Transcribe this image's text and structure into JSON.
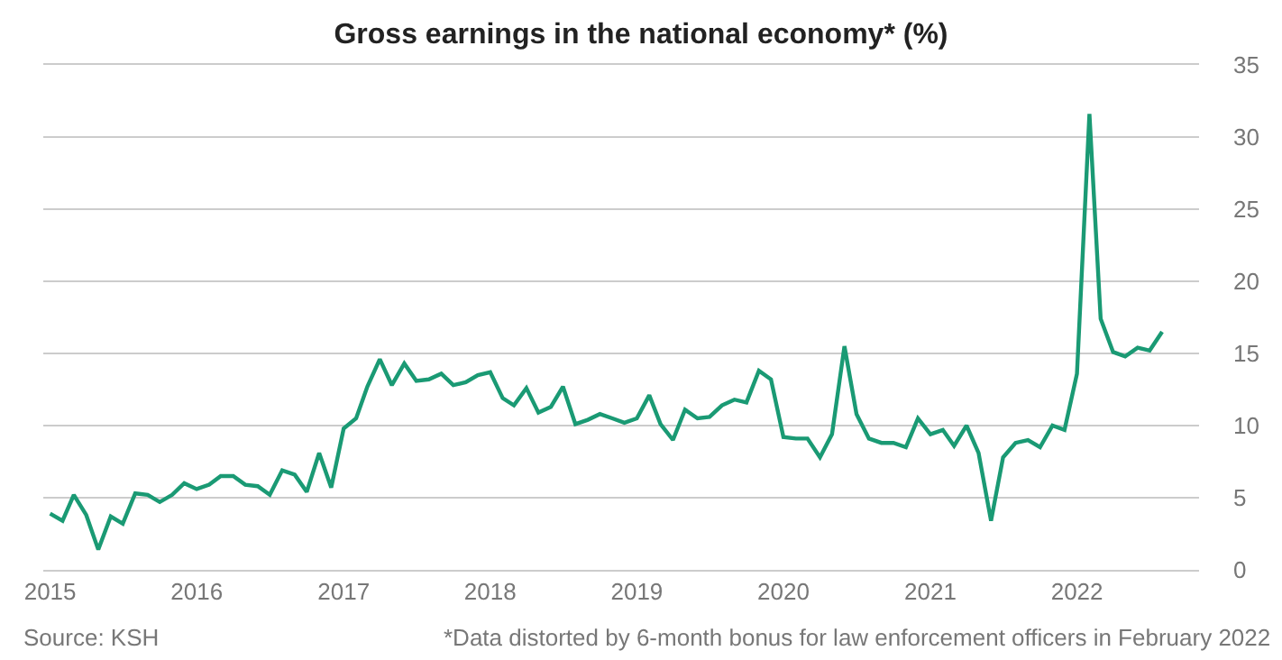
{
  "chart_data": {
    "type": "line",
    "title": "Gross earnings in the national economy* (%)",
    "x": [
      "2015-01",
      "2015-02",
      "2015-03",
      "2015-04",
      "2015-05",
      "2015-06",
      "2015-07",
      "2015-08",
      "2015-09",
      "2015-10",
      "2015-11",
      "2015-12",
      "2016-01",
      "2016-02",
      "2016-03",
      "2016-04",
      "2016-05",
      "2016-06",
      "2016-07",
      "2016-08",
      "2016-09",
      "2016-10",
      "2016-11",
      "2016-12",
      "2017-01",
      "2017-02",
      "2017-03",
      "2017-04",
      "2017-05",
      "2017-06",
      "2017-07",
      "2017-08",
      "2017-09",
      "2017-10",
      "2017-11",
      "2017-12",
      "2018-01",
      "2018-02",
      "2018-03",
      "2018-04",
      "2018-05",
      "2018-06",
      "2018-07",
      "2018-08",
      "2018-09",
      "2018-10",
      "2018-11",
      "2018-12",
      "2019-01",
      "2019-02",
      "2019-03",
      "2019-04",
      "2019-05",
      "2019-06",
      "2019-07",
      "2019-08",
      "2019-09",
      "2019-10",
      "2019-11",
      "2019-12",
      "2020-01",
      "2020-02",
      "2020-03",
      "2020-04",
      "2020-05",
      "2020-06",
      "2020-07",
      "2020-08",
      "2020-09",
      "2020-10",
      "2020-11",
      "2020-12",
      "2021-01",
      "2021-02",
      "2021-03",
      "2021-04",
      "2021-05",
      "2021-06",
      "2021-07",
      "2021-08",
      "2021-09",
      "2021-10",
      "2021-11",
      "2021-12",
      "2022-01",
      "2022-02",
      "2022-03",
      "2022-04",
      "2022-05",
      "2022-06",
      "2022-07",
      "2022-08"
    ],
    "series": [
      {
        "color": "#1a9a74",
        "values": [
          3.9,
          3.4,
          5.2,
          3.8,
          1.4,
          3.7,
          3.2,
          5.3,
          5.2,
          4.7,
          5.2,
          6.0,
          5.6,
          5.9,
          6.5,
          6.5,
          5.9,
          5.8,
          5.2,
          6.9,
          6.6,
          5.4,
          8.1,
          5.7,
          9.8,
          10.5,
          12.7,
          14.6,
          12.8,
          14.3,
          13.1,
          13.2,
          13.6,
          12.8,
          13.0,
          13.5,
          13.7,
          11.9,
          11.4,
          12.6,
          10.9,
          11.3,
          12.7,
          10.1,
          10.4,
          10.8,
          10.5,
          10.2,
          10.5,
          12.1,
          10.1,
          9.0,
          11.1,
          10.5,
          10.6,
          11.4,
          11.8,
          11.6,
          13.8,
          13.2,
          9.2,
          9.1,
          9.1,
          7.8,
          9.4,
          15.5,
          10.8,
          9.1,
          8.8,
          8.8,
          8.5,
          10.5,
          9.4,
          9.7,
          8.6,
          10.0,
          8.1,
          3.4,
          7.8,
          8.8,
          9.0,
          8.5,
          10.0,
          9.7,
          13.6,
          31.6,
          17.4,
          15.1,
          14.8,
          15.4,
          15.2,
          16.5
        ]
      }
    ],
    "xlim": [
      "2014-12-15",
      "2022-11-01"
    ],
    "xticks": [
      {
        "value": "2015-01",
        "label": "2015"
      },
      {
        "value": "2016-01",
        "label": "2016"
      },
      {
        "value": "2017-01",
        "label": "2017"
      },
      {
        "value": "2018-01",
        "label": "2018"
      },
      {
        "value": "2019-01",
        "label": "2019"
      },
      {
        "value": "2020-01",
        "label": "2020"
      },
      {
        "value": "2021-01",
        "label": "2021"
      },
      {
        "value": "2022-01",
        "label": "2022"
      }
    ],
    "ylim": [
      0,
      35
    ],
    "yticks": [
      0,
      5,
      10,
      15,
      20,
      25,
      30,
      35
    ],
    "grid": "y",
    "marker": "none",
    "line_style": "solid",
    "annotations": [
      "Source: KSH",
      "*Data distorted by 6-month bonus for law enforcement officers in February 2022"
    ]
  }
}
